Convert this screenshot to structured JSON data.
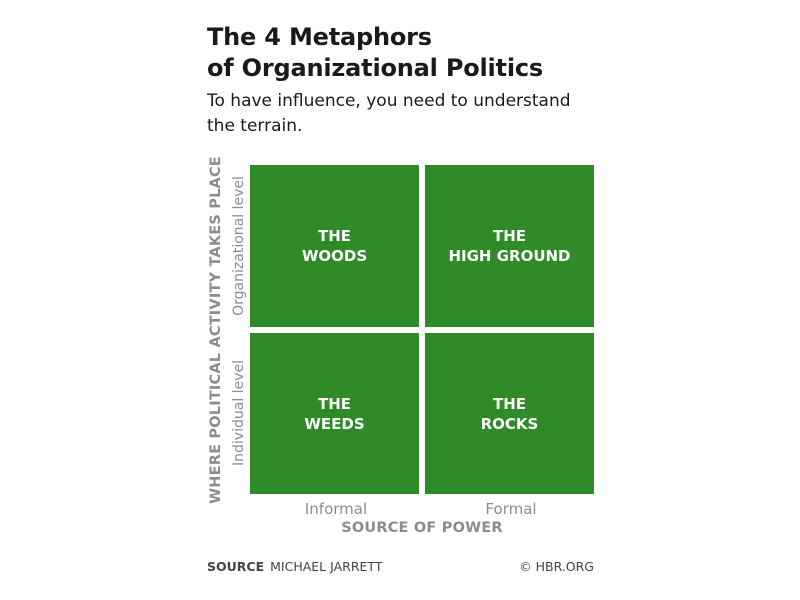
{
  "title": {
    "line1": "The 4 Metaphors",
    "line2": "of Organizational Politics"
  },
  "subtitle": {
    "line1": "To have influence, you need to understand",
    "line2": "the terrain."
  },
  "y_axis": {
    "title": "WHERE POLITICAL ACTIVITY TAKES PLACE",
    "levels": [
      "Organizational level",
      "Individual level"
    ]
  },
  "x_axis": {
    "title": "SOURCE OF POWER",
    "levels": [
      "Informal",
      "Formal"
    ]
  },
  "quadrants": [
    {
      "line1": "THE",
      "line2": "WOODS",
      "x": "Informal",
      "y": "Organizational level"
    },
    {
      "line1": "THE",
      "line2": "HIGH GROUND",
      "x": "Formal",
      "y": "Organizational level"
    },
    {
      "line1": "THE",
      "line2": "WEEDS",
      "x": "Informal",
      "y": "Individual level"
    },
    {
      "line1": "THE",
      "line2": "ROCKS",
      "x": "Formal",
      "y": "Individual level"
    }
  ],
  "colors": {
    "quadrant_fill": "#2e8b28",
    "axis_text": "#8c8c8c",
    "title_text": "#1a1a1a"
  },
  "footer": {
    "source_label": "SOURCE",
    "source_value": "MICHAEL JARRETT",
    "copyright": "© HBR.ORG"
  }
}
